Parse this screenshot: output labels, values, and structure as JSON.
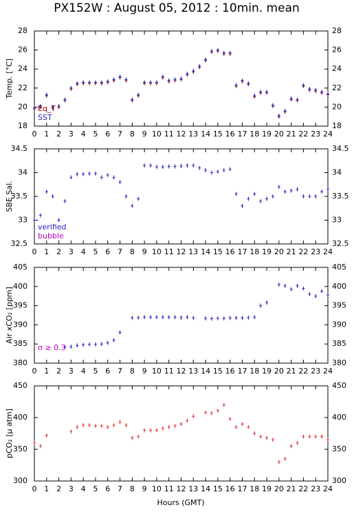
{
  "title": "PX152W : August 05, 2012 : 10min. mean",
  "x_label": "Hours (GMT)",
  "chart_data": [
    {
      "type": "scatter",
      "y_label": "Temp. [°C]",
      "x": [
        0,
        0.5,
        1,
        1.5,
        2,
        2.5,
        3,
        3.5,
        4,
        4.5,
        5,
        5.5,
        6,
        6.5,
        7,
        7.5,
        8,
        8.5,
        9,
        9.5,
        10,
        10.5,
        11,
        11.5,
        12,
        12.5,
        13,
        13.5,
        14,
        14.5,
        15,
        15.5,
        16,
        16.5,
        17,
        17.5,
        18,
        18.5,
        19,
        19.5,
        20,
        20.5,
        21,
        21.5,
        22,
        22.5,
        23,
        23.5,
        24
      ],
      "series": [
        {
          "name": "Eq_T",
          "color": "#a00000",
          "values": [
            19.8,
            20.0,
            21.2,
            19.9,
            20.0,
            20.7,
            21.9,
            22.4,
            22.5,
            22.5,
            22.5,
            22.5,
            22.6,
            22.8,
            23.1,
            22.8,
            20.7,
            21.2,
            22.5,
            22.5,
            22.5,
            23.1,
            22.7,
            22.8,
            22.9,
            23.4,
            23.7,
            24.2,
            24.9,
            25.8,
            25.9,
            25.6,
            25.6,
            22.2,
            22.7,
            22.4,
            21.1,
            21.5,
            21.5,
            20.1,
            19.0,
            19.5,
            20.8,
            20.7,
            22.2,
            21.8,
            21.7,
            21.5,
            21.3
          ]
        },
        {
          "name": "SST",
          "color": "#2020c0",
          "values": [
            19.9,
            20.1,
            21.3,
            20.0,
            20.1,
            20.8,
            22.0,
            22.5,
            22.6,
            22.6,
            22.6,
            22.6,
            22.7,
            22.9,
            23.2,
            22.9,
            20.8,
            21.3,
            22.6,
            22.6,
            22.6,
            23.2,
            22.8,
            22.9,
            23.0,
            23.5,
            23.8,
            24.3,
            25.0,
            25.9,
            26.0,
            25.7,
            25.7,
            22.3,
            22.8,
            22.5,
            21.2,
            21.6,
            21.6,
            20.2,
            19.1,
            19.6,
            20.9,
            20.8,
            22.3,
            21.9,
            21.8,
            21.6,
            21.4
          ]
        }
      ],
      "xlim": [
        0,
        24
      ],
      "xticks": [
        0,
        1,
        2,
        3,
        4,
        5,
        6,
        7,
        8,
        9,
        10,
        11,
        12,
        13,
        14,
        15,
        16,
        17,
        18,
        19,
        20,
        21,
        22,
        23,
        24
      ],
      "ylim": [
        18,
        28
      ],
      "yticks": [
        18,
        20,
        22,
        24,
        26,
        28
      ]
    },
    {
      "type": "scatter",
      "y_label": "SBE Sal.",
      "x": [
        0,
        0.5,
        1,
        1.5,
        2,
        2.5,
        3,
        3.5,
        4,
        4.5,
        5,
        5.5,
        6,
        6.5,
        7,
        7.5,
        8,
        8.5,
        9,
        9.5,
        10,
        10.5,
        11,
        11.5,
        12,
        12.5,
        13,
        13.5,
        14,
        14.5,
        15,
        15.5,
        16,
        16.5,
        17,
        17.5,
        18,
        18.5,
        19,
        19.5,
        20,
        20.5,
        21,
        21.5,
        22,
        22.5,
        23,
        23.5,
        24
      ],
      "series": [
        {
          "name": "verified",
          "color": "#2020c0",
          "values": [
            33.0,
            33.1,
            33.6,
            33.5,
            33.0,
            33.4,
            33.9,
            33.97,
            33.97,
            33.98,
            33.98,
            33.9,
            33.95,
            33.9,
            33.8,
            33.5,
            33.3,
            33.45,
            34.15,
            34.15,
            34.12,
            34.12,
            34.13,
            34.13,
            34.14,
            34.15,
            34.15,
            34.1,
            34.05,
            34.0,
            34.02,
            34.05,
            34.07,
            33.55,
            33.3,
            33.45,
            33.55,
            33.4,
            33.45,
            33.5,
            33.7,
            33.6,
            33.62,
            33.65,
            33.5,
            33.5,
            33.5,
            33.6,
            33.65
          ]
        },
        {
          "name": "bubble",
          "color": "#c000c0",
          "values": [
            null,
            null,
            null,
            null,
            null,
            null,
            null,
            null,
            null,
            null,
            null,
            null,
            null,
            null,
            null,
            null,
            null,
            null,
            null,
            null,
            null,
            null,
            null,
            null,
            null,
            null,
            null,
            null,
            null,
            null,
            null,
            null,
            null,
            null,
            null,
            null,
            null,
            null,
            null,
            null,
            null,
            null,
            null,
            null,
            null,
            null,
            null,
            null,
            null
          ]
        }
      ],
      "xlim": [
        0,
        24
      ],
      "xticks": [
        0,
        1,
        2,
        3,
        4,
        5,
        6,
        7,
        8,
        9,
        10,
        11,
        12,
        13,
        14,
        15,
        16,
        17,
        18,
        19,
        20,
        21,
        22,
        23,
        24
      ],
      "ylim": [
        32.5,
        34.5
      ],
      "yticks": [
        32.5,
        33,
        33.5,
        34,
        34.5
      ]
    },
    {
      "type": "scatter",
      "y_label": "Air xCO₂ [ppm]",
      "annotation": "σ ≥ 0.3",
      "annotation_color": "#c000c0",
      "x": [
        0,
        0.5,
        1,
        1.5,
        2,
        2.5,
        3,
        3.5,
        4,
        4.5,
        5,
        5.5,
        6,
        6.5,
        7,
        7.5,
        8,
        8.5,
        9,
        9.5,
        10,
        10.5,
        11,
        11.5,
        12,
        12.5,
        13,
        13.5,
        14,
        14.5,
        15,
        15.5,
        16,
        16.5,
        17,
        17.5,
        18,
        18.5,
        19,
        19.5,
        20,
        20.5,
        21,
        21.5,
        22,
        22.5,
        23,
        23.5,
        24
      ],
      "series": [
        {
          "color": "#2020c0",
          "values": [
            null,
            null,
            null,
            null,
            null,
            384.2,
            384.3,
            384.6,
            384.8,
            384.9,
            384.9,
            385,
            385.3,
            386,
            388,
            null,
            391.8,
            391.9,
            392,
            392,
            392,
            392,
            392,
            392,
            391.9,
            392,
            391.8,
            null,
            391.7,
            391.6,
            391.7,
            391.7,
            391.8,
            391.8,
            391.8,
            391.9,
            392,
            395,
            395.8,
            null,
            400.5,
            400.2,
            399.3,
            400.2,
            399.5,
            398,
            397.5,
            398.8,
            397.8
          ]
        }
      ],
      "xlim": [
        0,
        24
      ],
      "xticks": [
        0,
        1,
        2,
        3,
        4,
        5,
        6,
        7,
        8,
        9,
        10,
        11,
        12,
        13,
        14,
        15,
        16,
        17,
        18,
        19,
        20,
        21,
        22,
        23,
        24
      ],
      "ylim": [
        380,
        405
      ],
      "yticks": [
        380,
        385,
        390,
        395,
        400,
        405
      ]
    },
    {
      "type": "scatter",
      "y_label": "pCO₂ [µ atm]",
      "x": [
        0,
        0.5,
        1,
        1.5,
        2,
        2.5,
        3,
        3.5,
        4,
        4.5,
        5,
        5.5,
        6,
        6.5,
        7,
        7.5,
        8,
        8.5,
        9,
        9.5,
        10,
        10.5,
        11,
        11.5,
        12,
        12.5,
        13,
        13.5,
        14,
        14.5,
        15,
        15.5,
        16,
        16.5,
        17,
        17.5,
        18,
        18.5,
        19,
        19.5,
        20,
        20.5,
        21,
        21.5,
        22,
        22.5,
        23,
        23.5,
        24
      ],
      "series": [
        {
          "color": "#e03030",
          "values": [
            360,
            355,
            372,
            null,
            null,
            null,
            378,
            385,
            388,
            388,
            387,
            387,
            385,
            388,
            393,
            388,
            368,
            370,
            380,
            380,
            380,
            383,
            385,
            387,
            390,
            395,
            402,
            null,
            408,
            407,
            411,
            420,
            398,
            385,
            390,
            385,
            375,
            370,
            368,
            365,
            330,
            335,
            355,
            360,
            370,
            370,
            370,
            370,
            365
          ]
        }
      ],
      "xlim": [
        0,
        24
      ],
      "xticks": [
        0,
        1,
        2,
        3,
        4,
        5,
        6,
        7,
        8,
        9,
        10,
        11,
        12,
        13,
        14,
        15,
        16,
        17,
        18,
        19,
        20,
        21,
        22,
        23,
        24
      ],
      "ylim": [
        300,
        450
      ],
      "yticks": [
        300,
        350,
        400,
        450
      ]
    }
  ]
}
